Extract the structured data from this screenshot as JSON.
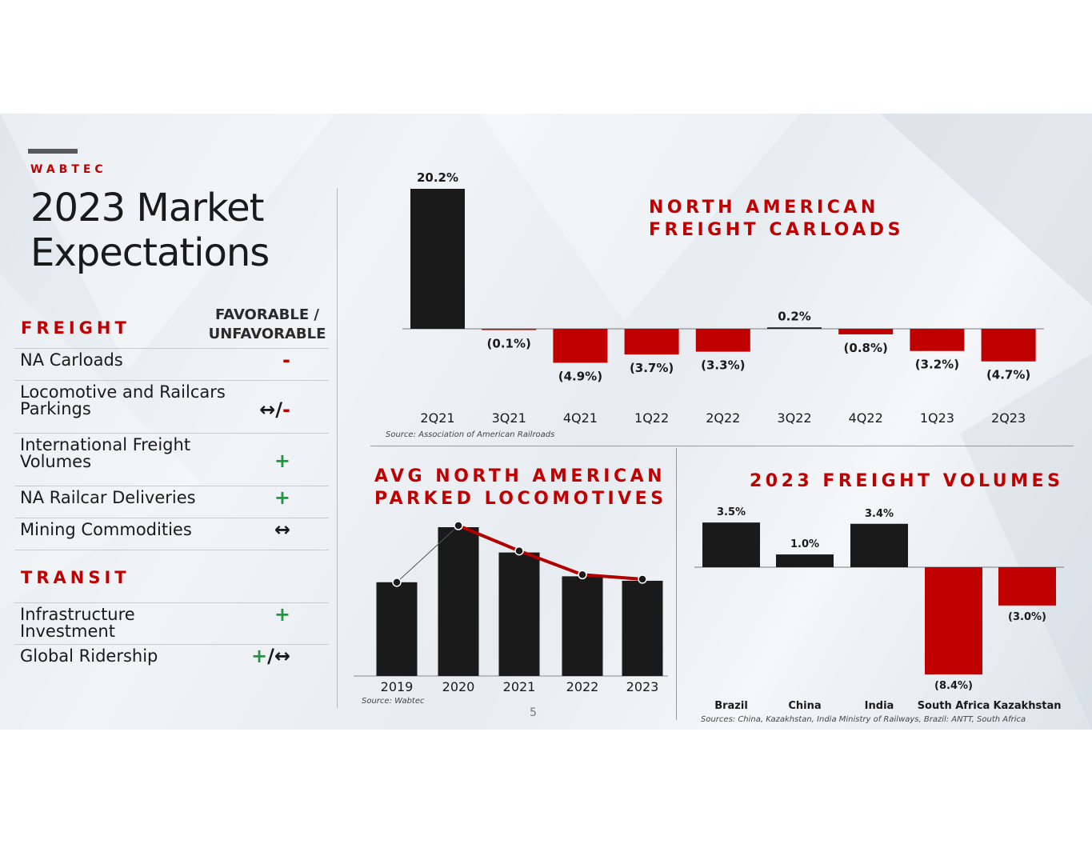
{
  "brand": "WABTEC",
  "title_line1": "2023 Market",
  "title_line2": "Expectations",
  "freight": {
    "heading": "FREIGHT",
    "column_heading_line1": "FAVORABLE /",
    "column_heading_line2": "UNFAVORABLE",
    "rows": [
      {
        "label_line1": "NA Carloads",
        "label_line2": "",
        "mark_a": "",
        "mark_b": "-"
      },
      {
        "label_line1": "Locomotive and Railcars",
        "label_line2": "Parkings",
        "mark_a": "↔/",
        "mark_b": "-"
      },
      {
        "label_line1": "International Freight",
        "label_line2": "Volumes",
        "mark_a": "",
        "mark_b": "+"
      },
      {
        "label_line1": "NA Railcar Deliveries",
        "label_line2": "",
        "mark_a": "",
        "mark_b": "+"
      },
      {
        "label_line1": "Mining Commodities",
        "label_line2": "",
        "mark_a": "",
        "mark_b": "↔"
      }
    ]
  },
  "transit": {
    "heading": "TRANSIT",
    "rows": [
      {
        "label_line1": "Infrastructure",
        "label_line2": "Investment",
        "mark_a": "",
        "mark_b": "+"
      },
      {
        "label_line1": "Global Ridership",
        "label_line2": "",
        "mark_a": "+",
        "mark_b": "/↔"
      }
    ]
  },
  "colors": {
    "accent_red": "#c00000",
    "bar_dark": "#1a1a1a",
    "favorable_green": "#1a9a3c"
  },
  "page_number": "5",
  "chart_data": [
    {
      "type": "bar",
      "title_line1": "NORTH AMERICAN",
      "title_line2": "FREIGHT CARLOADS",
      "categories": [
        "2Q21",
        "3Q21",
        "4Q21",
        "1Q22",
        "2Q22",
        "3Q22",
        "4Q22",
        "1Q23",
        "2Q23"
      ],
      "values": [
        20.2,
        -0.1,
        -4.9,
        -3.7,
        -3.3,
        0.2,
        -0.8,
        -3.2,
        -4.7
      ],
      "labels": [
        "20.2%",
        "(0.1%)",
        "(4.9%)",
        "(3.7%)",
        "(3.3%)",
        "0.2%",
        "(0.8%)",
        "(3.2%)",
        "(4.7%)"
      ],
      "unit": "%",
      "source": "Source: Association of American Railroads"
    },
    {
      "type": "bar",
      "title_line1": "AVG NORTH AMERICAN",
      "title_line2": "PARKED LOCOMOTIVES",
      "categories": [
        "2019",
        "2020",
        "2021",
        "2022",
        "2023"
      ],
      "values": [
        0.63,
        1.0,
        0.83,
        0.67,
        0.64
      ],
      "value_scale": "relative (no axis shown)",
      "trend_line": true,
      "source": "Source: Wabtec"
    },
    {
      "type": "bar",
      "title": "2023 FREIGHT VOLUMES",
      "categories": [
        "Brazil",
        "China",
        "India",
        "South Africa",
        "Kazakhstan"
      ],
      "values": [
        3.5,
        1.0,
        3.4,
        -8.4,
        -3.0
      ],
      "labels": [
        "3.5%",
        "1.0%",
        "3.4%",
        "(8.4%)",
        "(3.0%)"
      ],
      "unit": "%",
      "source": "Sources: China, Kazakhstan, India Ministry of Railways, Brazil: ANTT, South Africa"
    }
  ]
}
